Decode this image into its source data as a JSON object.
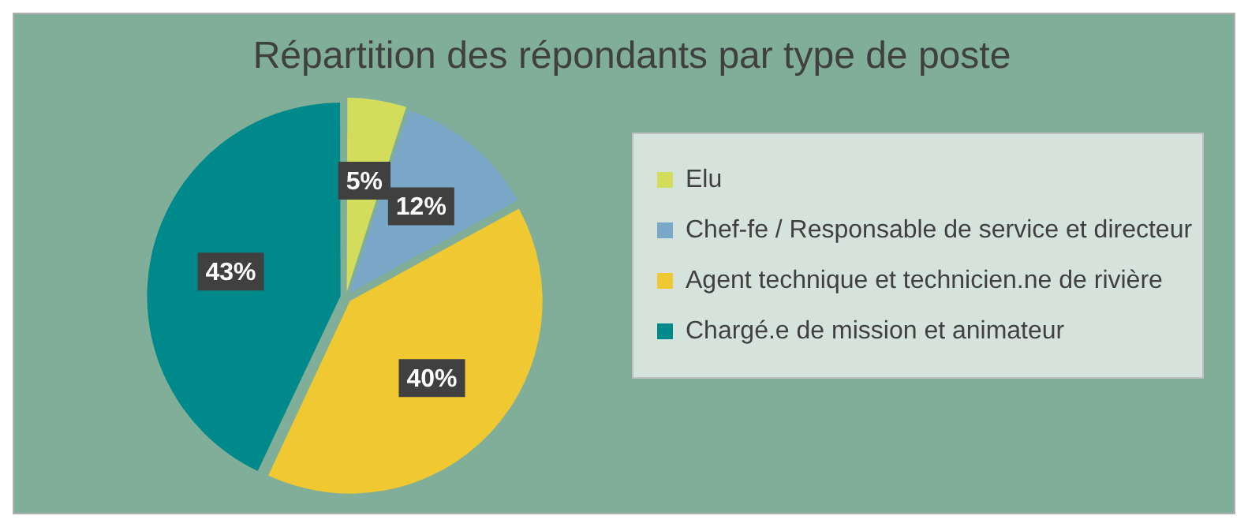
{
  "chart_data": {
    "type": "pie",
    "title": "Répartition des répondants par type de poste",
    "categories": [
      "Elu",
      "Chef-fe / Responsable de service et directeur",
      "Agent technique et technicien.ne de rivière",
      "Chargé.e de mission et animateur"
    ],
    "values": [
      5,
      12,
      40,
      43
    ],
    "colors": [
      "#d4dc5c",
      "#7ba7c9",
      "#f0c832",
      "#00898a"
    ],
    "value_labels": [
      "5%",
      "12%",
      "40%",
      "43%"
    ],
    "legend": "right"
  }
}
